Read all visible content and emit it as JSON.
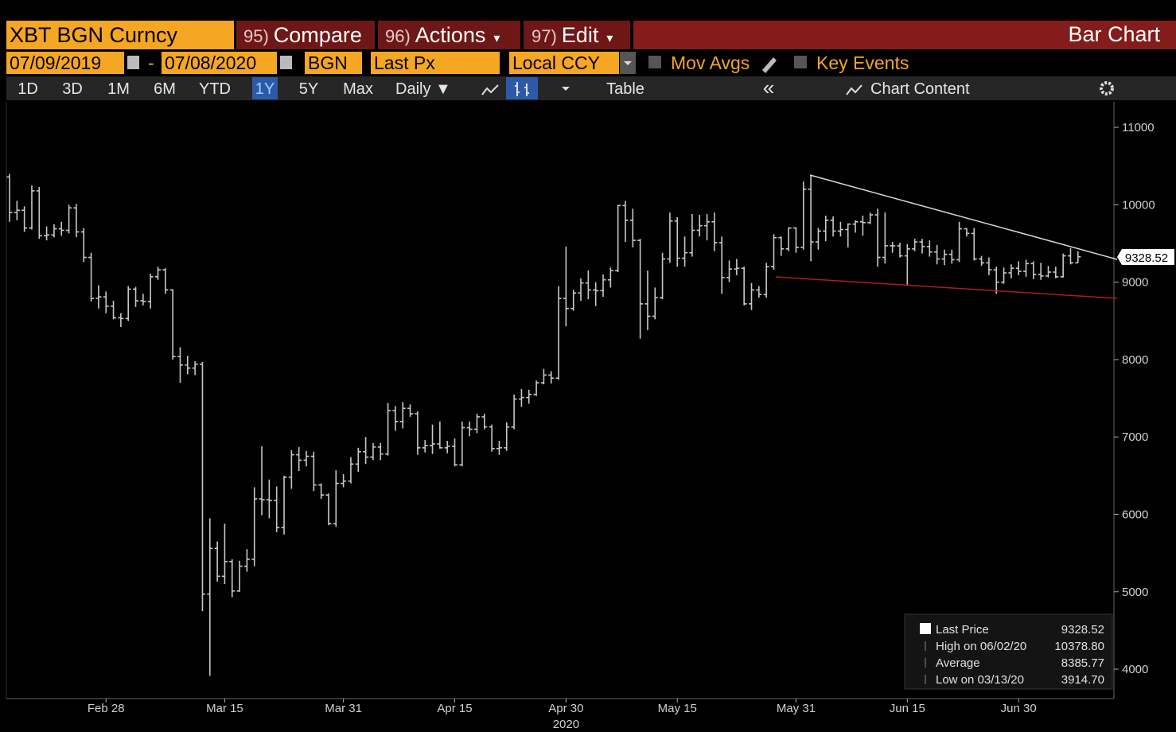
{
  "header": {
    "security": "XBT BGN Curncy",
    "menus": [
      {
        "key": "95)",
        "label": "Compare"
      },
      {
        "key": "96)",
        "label": "Actions",
        "caret": "▾"
      },
      {
        "key": "97)",
        "label": "Edit",
        "caret": "▾"
      }
    ],
    "view": "Bar Chart"
  },
  "controls": {
    "start_date": "07/09/2019",
    "separator": "-",
    "end_date": "07/08/2020",
    "source": "BGN",
    "field": "Last Px",
    "currency": "Local CCY",
    "toggles": [
      "Mov Avgs",
      "Key Events"
    ]
  },
  "toolbar": {
    "periods": [
      "1D",
      "3D",
      "1M",
      "6M",
      "YTD",
      "1Y",
      "5Y",
      "Max"
    ],
    "active": "1Y",
    "frequency": "Daily ▼",
    "table": "Table",
    "collapse": "«",
    "content": "Chart Content"
  },
  "chart_data": {
    "type": "ohlc",
    "categories": [
      null,
      null,
      null,
      null,
      null,
      null,
      null,
      null,
      null,
      null,
      null,
      null,
      null,
      "Feb 28",
      null,
      null,
      null,
      null,
      null,
      null,
      null,
      null,
      null,
      null,
      null,
      null,
      null,
      null,
      null,
      "Mar 15",
      null,
      null,
      null,
      null,
      null,
      null,
      null,
      null,
      null,
      null,
      null,
      null,
      null,
      null,
      null,
      "Mar 31",
      null,
      null,
      null,
      null,
      null,
      null,
      null,
      null,
      null,
      null,
      null,
      null,
      null,
      null,
      "Apr 15",
      null,
      null,
      null,
      null,
      null,
      null,
      null,
      null,
      null,
      null,
      null,
      null,
      null,
      null,
      "Apr 30",
      null,
      null,
      null,
      null,
      null,
      null,
      null,
      null,
      null,
      null,
      null,
      null,
      null,
      null,
      "May 15",
      null,
      null,
      null,
      null,
      null,
      null,
      null,
      null,
      null,
      null,
      null,
      null,
      null,
      null,
      null,
      "May 31",
      null,
      null,
      null,
      null,
      null,
      null,
      null,
      null,
      null,
      null,
      null,
      null,
      null,
      null,
      "Jun 15",
      null,
      null,
      null,
      null,
      null,
      null,
      null,
      null,
      null,
      null,
      null,
      null,
      null,
      null,
      "Jun 30",
      null,
      null,
      null,
      null,
      null,
      null,
      null,
      null
    ],
    "x_sublabel": "2020",
    "series": [
      {
        "name": "Last Price",
        "color": "#c8c8c8",
        "open": [
          10360,
          9900,
          9930,
          9700,
          10180,
          9600,
          9610,
          9690,
          9670,
          9960,
          9650,
          9320,
          8790,
          8810,
          8690,
          8540,
          8530,
          8910,
          8760,
          8750,
          9070,
          9160,
          8900,
          8040,
          7930,
          7890,
          7940,
          4970,
          5560,
          5200,
          5390,
          5010,
          5330,
          5420,
          6200,
          6190,
          6180,
          5830,
          6480,
          6770,
          6700,
          6750,
          6380,
          6250,
          5880,
          6400,
          6430,
          6650,
          6810,
          6740,
          6870,
          6780,
          7340,
          7200,
          7370,
          7300,
          6860,
          6890,
          6910,
          6860,
          6880,
          6640,
          7120,
          7100,
          7260,
          7130,
          6850,
          6860,
          7130,
          7490,
          7510,
          7550,
          7700,
          7800,
          7760,
          8790,
          8660,
          8860,
          8990,
          8900,
          8890,
          9030,
          9150,
          9990,
          9800,
          9540,
          8720,
          8560,
          8800,
          9300,
          9790,
          9310,
          9380,
          9670,
          9730,
          9780,
          9510,
          9060,
          9170,
          9180,
          8720,
          8900,
          8840,
          9200,
          9575,
          9430,
          9700,
          9450,
          10200,
          9520,
          9660,
          9800,
          9660,
          9680,
          9750,
          9780,
          9770,
          9870,
          9320,
          9470,
          9470,
          9340,
          9430,
          9520,
          9460,
          9390,
          9300,
          9360,
          9290,
          9690,
          9630,
          9300,
          9250,
          9160,
          9000,
          9120,
          9180,
          9140,
          9240,
          9100,
          9080,
          9130,
          9070,
          9340,
          9250
        ],
        "high": [
          10400,
          10050,
          9980,
          10250,
          10230,
          9720,
          9750,
          9780,
          10000,
          10010,
          9700,
          9380,
          8960,
          8880,
          8760,
          8600,
          8950,
          8940,
          8850,
          9110,
          9200,
          9180,
          8910,
          8160,
          8050,
          7980,
          7970,
          5950,
          5650,
          5880,
          5420,
          5400,
          5550,
          6350,
          6880,
          6450,
          6360,
          6500,
          6830,
          6870,
          6820,
          6810,
          6400,
          6270,
          6570,
          6520,
          6740,
          6860,
          7000,
          6920,
          6920,
          7440,
          7400,
          7450,
          7420,
          7330,
          6960,
          7160,
          7200,
          6950,
          6980,
          7200,
          7200,
          7300,
          7300,
          7160,
          6950,
          7190,
          7550,
          7620,
          7610,
          7730,
          7880,
          7850,
          8950,
          9460,
          8900,
          9050,
          9150,
          9000,
          9100,
          9190,
          10000,
          10050,
          9950,
          9560,
          9150,
          8930,
          9380,
          9900,
          9840,
          9590,
          9880,
          9870,
          9880,
          9900,
          9590,
          9280,
          9300,
          9200,
          8990,
          8950,
          9250,
          9620,
          9590,
          9710,
          9710,
          10300,
          10378.8,
          9700,
          9860,
          9850,
          9780,
          9760,
          9800,
          9860,
          9900,
          9950,
          9900,
          9520,
          9510,
          9490,
          9560,
          9560,
          9540,
          9480,
          9420,
          9420,
          9780,
          9700,
          9700,
          9340,
          9320,
          9200,
          9190,
          9230,
          9270,
          9290,
          9270,
          9250,
          9210,
          9200,
          9370,
          9440,
          9400
        ],
        "low": [
          9780,
          9800,
          9650,
          9680,
          9560,
          9540,
          9580,
          9600,
          9630,
          9580,
          9260,
          8750,
          8660,
          8600,
          8520,
          8420,
          8500,
          8680,
          8700,
          8660,
          9030,
          8850,
          8000,
          7700,
          7810,
          7800,
          4750,
          3914.7,
          5130,
          5100,
          4930,
          5000,
          5260,
          5330,
          5990,
          5950,
          5770,
          5740,
          6330,
          6560,
          6620,
          6300,
          6200,
          5860,
          5840,
          6350,
          6400,
          6550,
          6650,
          6700,
          6700,
          6760,
          7080,
          7110,
          7260,
          6770,
          6800,
          6780,
          6850,
          6790,
          6620,
          6620,
          7010,
          7050,
          7100,
          6810,
          6770,
          6820,
          7100,
          7390,
          7430,
          7530,
          7680,
          7690,
          7740,
          8430,
          8630,
          8760,
          8780,
          8690,
          8810,
          8930,
          9130,
          9520,
          9450,
          8270,
          8380,
          8520,
          8780,
          9250,
          9200,
          9200,
          9330,
          9590,
          9540,
          9400,
          8850,
          9000,
          9090,
          8700,
          8640,
          8800,
          8800,
          9160,
          9340,
          9400,
          9380,
          9420,
          9270,
          9420,
          9530,
          9590,
          9590,
          9450,
          9640,
          9600,
          9750,
          9200,
          9240,
          9380,
          9320,
          8960,
          9400,
          9370,
          9330,
          9230,
          9220,
          9240,
          9260,
          9590,
          9280,
          9210,
          9090,
          8850,
          8980,
          9050,
          9090,
          9070,
          9040,
          9030,
          9060,
          9050,
          9060,
          9230,
          9250
        ],
        "close": [
          9900,
          9930,
          9700,
          10180,
          9600,
          9610,
          9690,
          9670,
          9960,
          9650,
          9320,
          8790,
          8810,
          8690,
          8540,
          8530,
          8910,
          8760,
          8750,
          9070,
          9160,
          8900,
          8040,
          7930,
          7890,
          7940,
          4970,
          5560,
          5200,
          5390,
          5010,
          5330,
          5420,
          6200,
          6190,
          6180,
          5830,
          6480,
          6770,
          6700,
          6750,
          6380,
          6250,
          5880,
          6400,
          6430,
          6650,
          6810,
          6740,
          6870,
          6780,
          7340,
          7200,
          7370,
          7300,
          6860,
          6890,
          6910,
          6860,
          6880,
          6640,
          7120,
          7100,
          7260,
          7130,
          6850,
          6860,
          7130,
          7490,
          7510,
          7550,
          7700,
          7800,
          7760,
          8790,
          8660,
          8860,
          8990,
          8900,
          8890,
          9030,
          9150,
          9990,
          9800,
          9540,
          8720,
          8560,
          8800,
          9300,
          9790,
          9310,
          9380,
          9670,
          9730,
          9780,
          9510,
          9060,
          9170,
          9180,
          8720,
          8900,
          8840,
          9200,
          9575,
          9430,
          9700,
          9450,
          10200,
          9520,
          9660,
          9800,
          9660,
          9680,
          9750,
          9780,
          9770,
          9870,
          9320,
          9470,
          9470,
          9340,
          9430,
          9520,
          9460,
          9390,
          9300,
          9360,
          9290,
          9690,
          9630,
          9300,
          9250,
          9160,
          9000,
          9120,
          9180,
          9140,
          9240,
          9100,
          9080,
          9130,
          9070,
          9340,
          9250,
          9328.52
        ]
      }
    ],
    "ylim": [
      3620,
      11330
    ],
    "yticks": [
      4000,
      5000,
      6000,
      7000,
      8000,
      9000,
      10000,
      11000
    ],
    "legend": {
      "last_value": "9328.52",
      "stats": [
        {
          "label": "High on 06/02/20",
          "value": "10378.80"
        },
        {
          "label": "Average",
          "value": "8385.77"
        },
        {
          "label": "Low on 03/13/20",
          "value": "3914.70"
        }
      ]
    }
  }
}
